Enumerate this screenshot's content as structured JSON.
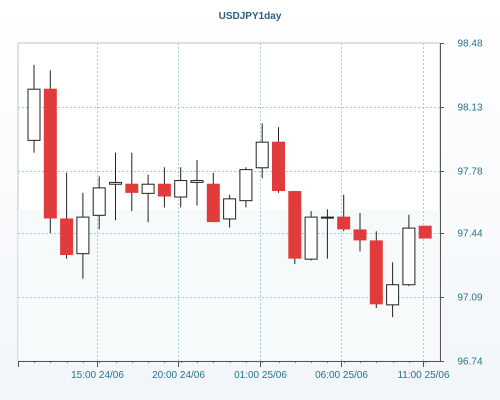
{
  "chart_data": {
    "type": "candlestick",
    "title": "USDJPY1day",
    "y_ticks": [
      "98.48",
      "98.13",
      "97.78",
      "97.44",
      "97.09",
      "96.74"
    ],
    "x_tick_labels": [
      "15:00 24/06",
      "20:00 24/06",
      "01:00 25/06",
      "06:00 25/06",
      "11:00 25/06"
    ],
    "ylim": [
      96.74,
      98.48
    ],
    "grid": true,
    "colors": {
      "up_fill": "#ffffff",
      "down_fill": "#e23b3b",
      "outline": "#222222",
      "grid": "#9fd0d8",
      "axis_text": "#2a6f8f",
      "title": "#2a5f82"
    },
    "candles": [
      {
        "o": 97.95,
        "h": 98.36,
        "l": 97.88,
        "c": 98.23
      },
      {
        "o": 98.23,
        "h": 98.33,
        "l": 97.44,
        "c": 97.52
      },
      {
        "o": 97.52,
        "h": 97.77,
        "l": 97.3,
        "c": 97.32
      },
      {
        "o": 97.33,
        "h": 97.66,
        "l": 97.19,
        "c": 97.53
      },
      {
        "o": 97.54,
        "h": 97.75,
        "l": 97.46,
        "c": 97.69
      },
      {
        "o": 97.71,
        "h": 97.88,
        "l": 97.51,
        "c": 97.72
      },
      {
        "o": 97.71,
        "h": 97.88,
        "l": 97.56,
        "c": 97.66
      },
      {
        "o": 97.66,
        "h": 97.76,
        "l": 97.5,
        "c": 97.71
      },
      {
        "o": 97.71,
        "h": 97.8,
        "l": 97.58,
        "c": 97.64
      },
      {
        "o": 97.64,
        "h": 97.8,
        "l": 97.58,
        "c": 97.73
      },
      {
        "o": 97.72,
        "h": 97.84,
        "l": 97.59,
        "c": 97.73
      },
      {
        "o": 97.71,
        "h": 97.77,
        "l": 97.5,
        "c": 97.5
      },
      {
        "o": 97.52,
        "h": 97.65,
        "l": 97.47,
        "c": 97.63
      },
      {
        "o": 97.62,
        "h": 97.8,
        "l": 97.58,
        "c": 97.79
      },
      {
        "o": 97.8,
        "h": 98.04,
        "l": 97.74,
        "c": 97.94
      },
      {
        "o": 97.94,
        "h": 98.02,
        "l": 97.66,
        "c": 97.67
      },
      {
        "o": 97.67,
        "h": 97.67,
        "l": 97.27,
        "c": 97.3
      },
      {
        "o": 97.3,
        "h": 97.56,
        "l": 97.29,
        "c": 97.53
      },
      {
        "o": 97.53,
        "h": 97.57,
        "l": 97.3,
        "c": 97.53
      },
      {
        "o": 97.53,
        "h": 97.65,
        "l": 97.45,
        "c": 97.46
      },
      {
        "o": 97.46,
        "h": 97.55,
        "l": 97.34,
        "c": 97.4
      },
      {
        "o": 97.4,
        "h": 97.45,
        "l": 97.03,
        "c": 97.05
      },
      {
        "o": 97.05,
        "h": 97.28,
        "l": 96.98,
        "c": 97.16
      },
      {
        "o": 97.16,
        "h": 97.54,
        "l": 97.15,
        "c": 97.47
      },
      {
        "o": 97.48,
        "h": 97.48,
        "l": 97.41,
        "c": 97.41
      }
    ]
  }
}
